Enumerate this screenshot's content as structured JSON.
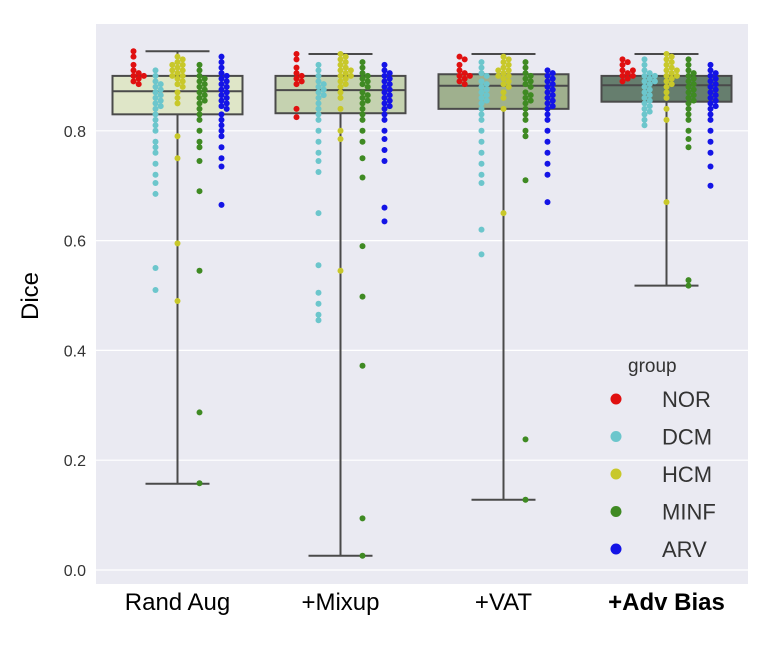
{
  "chart_data": {
    "type": "box+swarm",
    "title": "",
    "xlabel": "",
    "ylabel": "Dice",
    "ylim": [
      -0.02,
      0.98
    ],
    "yticks": [
      0.0,
      0.2,
      0.4,
      0.6,
      0.8
    ],
    "ytick_labels": [
      "0.0",
      "0.2",
      "0.4",
      "0.6",
      "0.8"
    ],
    "grid": true,
    "legend": {
      "title": "group",
      "placement": "lower-right",
      "entries": [
        {
          "name": "NOR",
          "color": "#e01010"
        },
        {
          "name": "DCM",
          "color": "#6cc6cc"
        },
        {
          "name": "HCM",
          "color": "#c8c82a"
        },
        {
          "name": "MINF",
          "color": "#3f8a23"
        },
        {
          "name": "ARV",
          "color": "#1414e6"
        }
      ]
    },
    "categories": [
      {
        "label": "Rand Aug",
        "bold": false,
        "box_color": "#dfe6c8",
        "box": {
          "whisker_low": 0.157,
          "q1": 0.83,
          "median": 0.872,
          "q3": 0.9,
          "whisker_high": 0.945
        },
        "groups": {
          "NOR": [
            0.945,
            0.935,
            0.92,
            0.91,
            0.9,
            0.905,
            0.895,
            0.89,
            0.885,
            0.9
          ],
          "DCM": [
            0.91,
            0.9,
            0.89,
            0.88,
            0.87,
            0.86,
            0.855,
            0.85,
            0.84,
            0.83,
            0.82,
            0.81,
            0.8,
            0.78,
            0.77,
            0.76,
            0.74,
            0.72,
            0.705,
            0.685,
            0.55,
            0.51,
            0.885,
            0.875,
            0.865,
            0.845
          ],
          "HCM": [
            0.935,
            0.93,
            0.925,
            0.92,
            0.915,
            0.91,
            0.905,
            0.9,
            0.895,
            0.89,
            0.885,
            0.88,
            0.87,
            0.86,
            0.85,
            0.79,
            0.75,
            0.595,
            0.49,
            0.92,
            0.91,
            0.9
          ],
          "MINF": [
            0.92,
            0.91,
            0.9,
            0.895,
            0.89,
            0.885,
            0.88,
            0.875,
            0.87,
            0.86,
            0.85,
            0.84,
            0.83,
            0.82,
            0.8,
            0.78,
            0.77,
            0.745,
            0.69,
            0.545,
            0.287,
            0.158,
            0.865,
            0.855
          ],
          "ARV": [
            0.935,
            0.925,
            0.915,
            0.905,
            0.9,
            0.895,
            0.89,
            0.88,
            0.87,
            0.86,
            0.85,
            0.84,
            0.83,
            0.82,
            0.81,
            0.8,
            0.79,
            0.77,
            0.75,
            0.735,
            0.665,
            0.885,
            0.875,
            0.865,
            0.855,
            0.845
          ]
        }
      },
      {
        "label": "+Mixup",
        "bold": false,
        "box_color": "#c5d2b0",
        "box": {
          "whisker_low": 0.026,
          "q1": 0.832,
          "median": 0.874,
          "q3": 0.9,
          "whisker_high": 0.94
        },
        "groups": {
          "NOR": [
            0.94,
            0.93,
            0.915,
            0.905,
            0.9,
            0.895,
            0.89,
            0.885,
            0.84,
            0.825
          ],
          "DCM": [
            0.92,
            0.91,
            0.9,
            0.89,
            0.88,
            0.87,
            0.86,
            0.85,
            0.84,
            0.83,
            0.82,
            0.8,
            0.78,
            0.76,
            0.745,
            0.725,
            0.65,
            0.555,
            0.505,
            0.485,
            0.465,
            0.455,
            0.885,
            0.875,
            0.865
          ],
          "HCM": [
            0.94,
            0.935,
            0.93,
            0.925,
            0.92,
            0.915,
            0.91,
            0.905,
            0.9,
            0.895,
            0.89,
            0.885,
            0.88,
            0.87,
            0.86,
            0.84,
            0.8,
            0.785,
            0.545,
            0.91,
            0.9
          ],
          "MINF": [
            0.925,
            0.915,
            0.905,
            0.9,
            0.895,
            0.89,
            0.885,
            0.88,
            0.87,
            0.86,
            0.85,
            0.84,
            0.83,
            0.82,
            0.8,
            0.78,
            0.75,
            0.715,
            0.59,
            0.498,
            0.372,
            0.094,
            0.026,
            0.865,
            0.855
          ],
          "ARV": [
            0.92,
            0.91,
            0.905,
            0.9,
            0.895,
            0.89,
            0.885,
            0.88,
            0.875,
            0.87,
            0.86,
            0.85,
            0.84,
            0.83,
            0.82,
            0.8,
            0.785,
            0.765,
            0.745,
            0.66,
            0.635,
            0.865,
            0.855,
            0.845
          ]
        }
      },
      {
        "label": "+VAT",
        "bold": false,
        "box_color": "#9fb08e",
        "box": {
          "whisker_low": 0.128,
          "q1": 0.84,
          "median": 0.882,
          "q3": 0.903,
          "whisker_high": 0.94
        },
        "groups": {
          "NOR": [
            0.935,
            0.93,
            0.92,
            0.91,
            0.905,
            0.9,
            0.895,
            0.89,
            0.885,
            0.9
          ],
          "DCM": [
            0.925,
            0.915,
            0.905,
            0.9,
            0.89,
            0.88,
            0.87,
            0.86,
            0.85,
            0.84,
            0.83,
            0.82,
            0.8,
            0.78,
            0.76,
            0.74,
            0.72,
            0.705,
            0.62,
            0.575,
            0.885,
            0.875,
            0.865,
            0.855
          ],
          "HCM": [
            0.935,
            0.93,
            0.925,
            0.92,
            0.915,
            0.91,
            0.905,
            0.9,
            0.895,
            0.89,
            0.885,
            0.88,
            0.87,
            0.86,
            0.84,
            0.65,
            0.91,
            0.9
          ],
          "MINF": [
            0.925,
            0.915,
            0.905,
            0.9,
            0.895,
            0.89,
            0.885,
            0.88,
            0.87,
            0.86,
            0.85,
            0.84,
            0.83,
            0.82,
            0.8,
            0.79,
            0.71,
            0.238,
            0.128,
            0.865,
            0.855
          ],
          "ARV": [
            0.91,
            0.905,
            0.9,
            0.895,
            0.89,
            0.885,
            0.88,
            0.87,
            0.86,
            0.85,
            0.84,
            0.83,
            0.82,
            0.8,
            0.78,
            0.76,
            0.74,
            0.72,
            0.67,
            0.875,
            0.865,
            0.855,
            0.845
          ]
        }
      },
      {
        "label": "+Adv Bias",
        "bold": true,
        "box_color": "#667e6e",
        "box": {
          "whisker_low": 0.518,
          "q1": 0.853,
          "median": 0.883,
          "q3": 0.9,
          "whisker_high": 0.94
        },
        "groups": {
          "NOR": [
            0.93,
            0.925,
            0.92,
            0.91,
            0.905,
            0.9,
            0.895,
            0.89,
            0.9,
            0.91
          ],
          "DCM": [
            0.93,
            0.92,
            0.91,
            0.905,
            0.9,
            0.895,
            0.89,
            0.885,
            0.88,
            0.87,
            0.86,
            0.85,
            0.84,
            0.83,
            0.82,
            0.81,
            0.875,
            0.865,
            0.855,
            0.845,
            0.835,
            0.9,
            0.89
          ],
          "HCM": [
            0.94,
            0.935,
            0.93,
            0.925,
            0.92,
            0.915,
            0.91,
            0.905,
            0.9,
            0.895,
            0.89,
            0.885,
            0.88,
            0.87,
            0.86,
            0.84,
            0.82,
            0.67,
            0.91,
            0.9
          ],
          "MINF": [
            0.93,
            0.92,
            0.91,
            0.905,
            0.9,
            0.895,
            0.89,
            0.885,
            0.88,
            0.87,
            0.86,
            0.85,
            0.84,
            0.83,
            0.82,
            0.8,
            0.785,
            0.77,
            0.528,
            0.518,
            0.875,
            0.865,
            0.855
          ],
          "ARV": [
            0.92,
            0.91,
            0.905,
            0.9,
            0.895,
            0.89,
            0.885,
            0.88,
            0.87,
            0.86,
            0.85,
            0.84,
            0.83,
            0.82,
            0.8,
            0.78,
            0.76,
            0.735,
            0.7,
            0.875,
            0.865,
            0.855,
            0.845
          ]
        }
      }
    ]
  }
}
